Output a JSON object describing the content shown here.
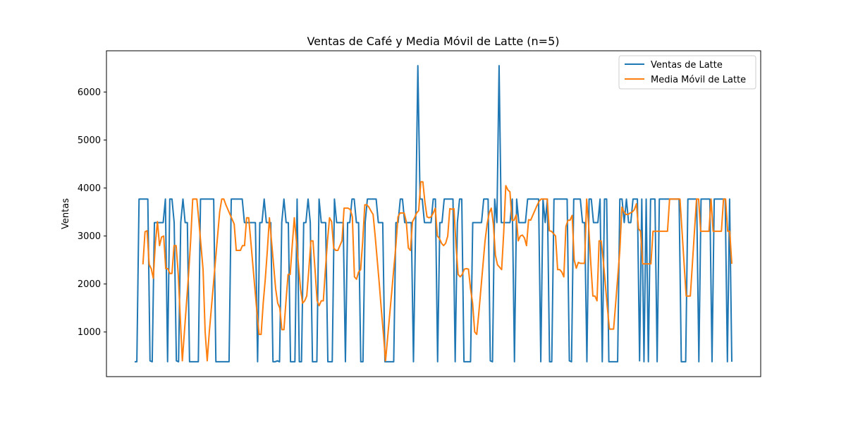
{
  "chart_data": {
    "type": "line",
    "title": "Ventas de Café y Media Móvil de Latte (n=5)",
    "xlabel": "",
    "ylabel": "Ventas",
    "ylim": [
      70,
      6860
    ],
    "y_ticks": [
      1000,
      2000,
      3000,
      4000,
      5000,
      6000
    ],
    "y_tick_labels": [
      "1000",
      "2000",
      "3000",
      "4000",
      "5000",
      "6000"
    ],
    "x_ticks": [],
    "grid": false,
    "legend_position": "top-right",
    "series": [
      {
        "name": "Ventas de Latte",
        "color": "#1f77b4",
        "values": [
          380,
          380,
          3770,
          3770,
          3770,
          3770,
          3770,
          400,
          380,
          3280,
          3280,
          3280,
          3280,
          3280,
          3770,
          380,
          3770,
          3770,
          3280,
          400,
          380,
          3280,
          3770,
          3280,
          3280,
          380,
          380,
          380,
          380,
          380,
          3770,
          3770,
          3770,
          3770,
          3770,
          3770,
          3770,
          380,
          380,
          380,
          380,
          380,
          380,
          380,
          3770,
          3770,
          3770,
          3770,
          3770,
          3770,
          3280,
          3280,
          3280,
          3280,
          3280,
          3280,
          380,
          3280,
          3280,
          3770,
          3280,
          3280,
          3280,
          380,
          380,
          400,
          380,
          3280,
          3770,
          3280,
          3280,
          380,
          380,
          380,
          3770,
          380,
          380,
          3280,
          3280,
          3770,
          3280,
          380,
          380,
          380,
          3770,
          3280,
          3280,
          3280,
          380,
          380,
          380,
          3770,
          3280,
          3280,
          3280,
          3280,
          380,
          3280,
          3280,
          3770,
          3770,
          3280,
          3280,
          380,
          380,
          3280,
          3770,
          3770,
          3770,
          3770,
          3770,
          3280,
          3280,
          3280,
          380,
          380,
          380,
          380,
          380,
          3280,
          3280,
          3770,
          3770,
          3280,
          3280,
          3280,
          3280,
          380,
          3280,
          6550,
          3770,
          3770,
          3280,
          3280,
          3280,
          3280,
          3770,
          3770,
          380,
          3280,
          3280,
          3770,
          3770,
          3770,
          3770,
          3770,
          380,
          3280,
          3770,
          3770,
          380,
          380,
          380,
          380,
          3280,
          3280,
          3280,
          3280,
          3280,
          3770,
          3770,
          3770,
          400,
          380,
          3770,
          3280,
          6550,
          3280,
          3280,
          3280,
          3280,
          3280,
          3770,
          380,
          3770,
          3280,
          3280,
          3280,
          3280,
          3770,
          3770,
          3770,
          3770,
          3770,
          3770,
          380,
          3770,
          3280,
          3770,
          380,
          380,
          3770,
          3770,
          3770,
          3770,
          3770,
          3770,
          3770,
          400,
          380,
          3770,
          3770,
          3770,
          3770,
          3280,
          3280,
          380,
          3770,
          3770,
          3280,
          3280,
          3280,
          3770,
          380,
          3770,
          3770,
          380,
          380,
          380,
          380,
          380,
          3770,
          3770,
          3280,
          3770,
          3280,
          3280,
          3770,
          3770,
          3770,
          400,
          3770,
          380,
          3770,
          380,
          3770,
          3770,
          3770,
          380,
          3770,
          3770,
          3770,
          3770,
          3770,
          3770,
          3770,
          3770,
          3770,
          3770,
          380,
          380,
          380,
          3770,
          3770,
          3770,
          3770,
          3770,
          380,
          3770,
          3770,
          3770,
          3770,
          3770,
          380,
          3770,
          3770,
          3770,
          3770,
          3770,
          3770,
          380,
          3770,
          380
        ]
      },
      {
        "name": "Media Móvil de Latte",
        "color": "#ff7f0e",
        "values": [
          null,
          null,
          null,
          null,
          2410,
          3090,
          3110,
          2410,
          2320,
          2120,
          2860,
          3300,
          2800,
          2980,
          3000,
          2320,
          2320,
          2220,
          2220,
          2800,
          2800,
          2220,
          1300,
          400,
          1000,
          1600,
          2200,
          2900,
          3770,
          3770,
          3770,
          3300,
          2800,
          2300,
          1000,
          400,
          1000,
          1500,
          2000,
          2500,
          3000,
          3500,
          3770,
          3770,
          3650,
          3550,
          3450,
          3350,
          3250,
          2700,
          2700,
          2700,
          2800,
          2800,
          3380,
          3380,
          2900,
          2400,
          1900,
          1400,
          950,
          950,
          1600,
          2100,
          2700,
          3380,
          2900,
          2400,
          1900,
          1600,
          1500,
          1050,
          1050,
          1650,
          2200,
          2200,
          2800,
          3380,
          2900,
          2400,
          1900,
          1600,
          1650,
          1750,
          2300,
          2900,
          2900,
          2300,
          1650,
          1550,
          1650,
          1650,
          2300,
          2900,
          3380,
          3300,
          2750,
          2700,
          2700,
          2800,
          2900,
          3580,
          3580,
          3580,
          3550,
          3400,
          2150,
          2100,
          2250,
          2300,
          2900,
          3650,
          3650,
          3600,
          3520,
          3450,
          3000,
          2500,
          2000,
          1450,
          950,
          400,
          880,
          1360,
          1840,
          2330,
          2800,
          3400,
          3480,
          3480,
          3480,
          3300,
          2750,
          2700,
          3300,
          3380,
          3480,
          3530,
          4130,
          4130,
          3700,
          3400,
          3380,
          3400,
          3480,
          3580,
          3000,
          2950,
          2850,
          2800,
          2850,
          3000,
          3570,
          3560,
          3570,
          2800,
          2200,
          2150,
          2200,
          2310,
          2320,
          2310,
          1900,
          1600,
          1000,
          950,
          1400,
          1900,
          2400,
          2900,
          3250,
          3480,
          3580,
          3250,
          2600,
          2400,
          2350,
          2300,
          3070,
          4050,
          3960,
          3920,
          3330,
          3330,
          3440,
          2900,
          3000,
          3020,
          2960,
          2800,
          3340,
          3330,
          3430,
          3530,
          3630,
          3720,
          3770,
          3770,
          3770,
          3770,
          3110,
          3100,
          3050,
          3000,
          2300,
          2300,
          2250,
          2150,
          3200,
          3330,
          3330,
          3430,
          2500,
          2330,
          2450,
          2430,
          2430,
          2430,
          3770,
          3200,
          2430,
          1750,
          1750,
          1650,
          2900,
          2900,
          2500,
          2000,
          1500,
          1060,
          1060,
          1060,
          1600,
          2150,
          2700,
          3600,
          3500,
          3450,
          3450,
          3480,
          3500,
          3550,
          3670,
          3150,
          3100,
          2420,
          2420,
          2420,
          2420,
          2420,
          3100,
          3100,
          3100,
          3100,
          3100,
          3100,
          3100,
          3100,
          3770,
          3770,
          3770,
          3770,
          3770,
          3770,
          3100,
          2420,
          1750,
          1750,
          1750,
          2420,
          3100,
          3770,
          3770,
          3100,
          3100,
          3100,
          3100,
          3100,
          3770,
          3100,
          3100,
          3100,
          3100,
          3100,
          3770,
          3770,
          3100,
          3100,
          2420
        ]
      }
    ]
  }
}
